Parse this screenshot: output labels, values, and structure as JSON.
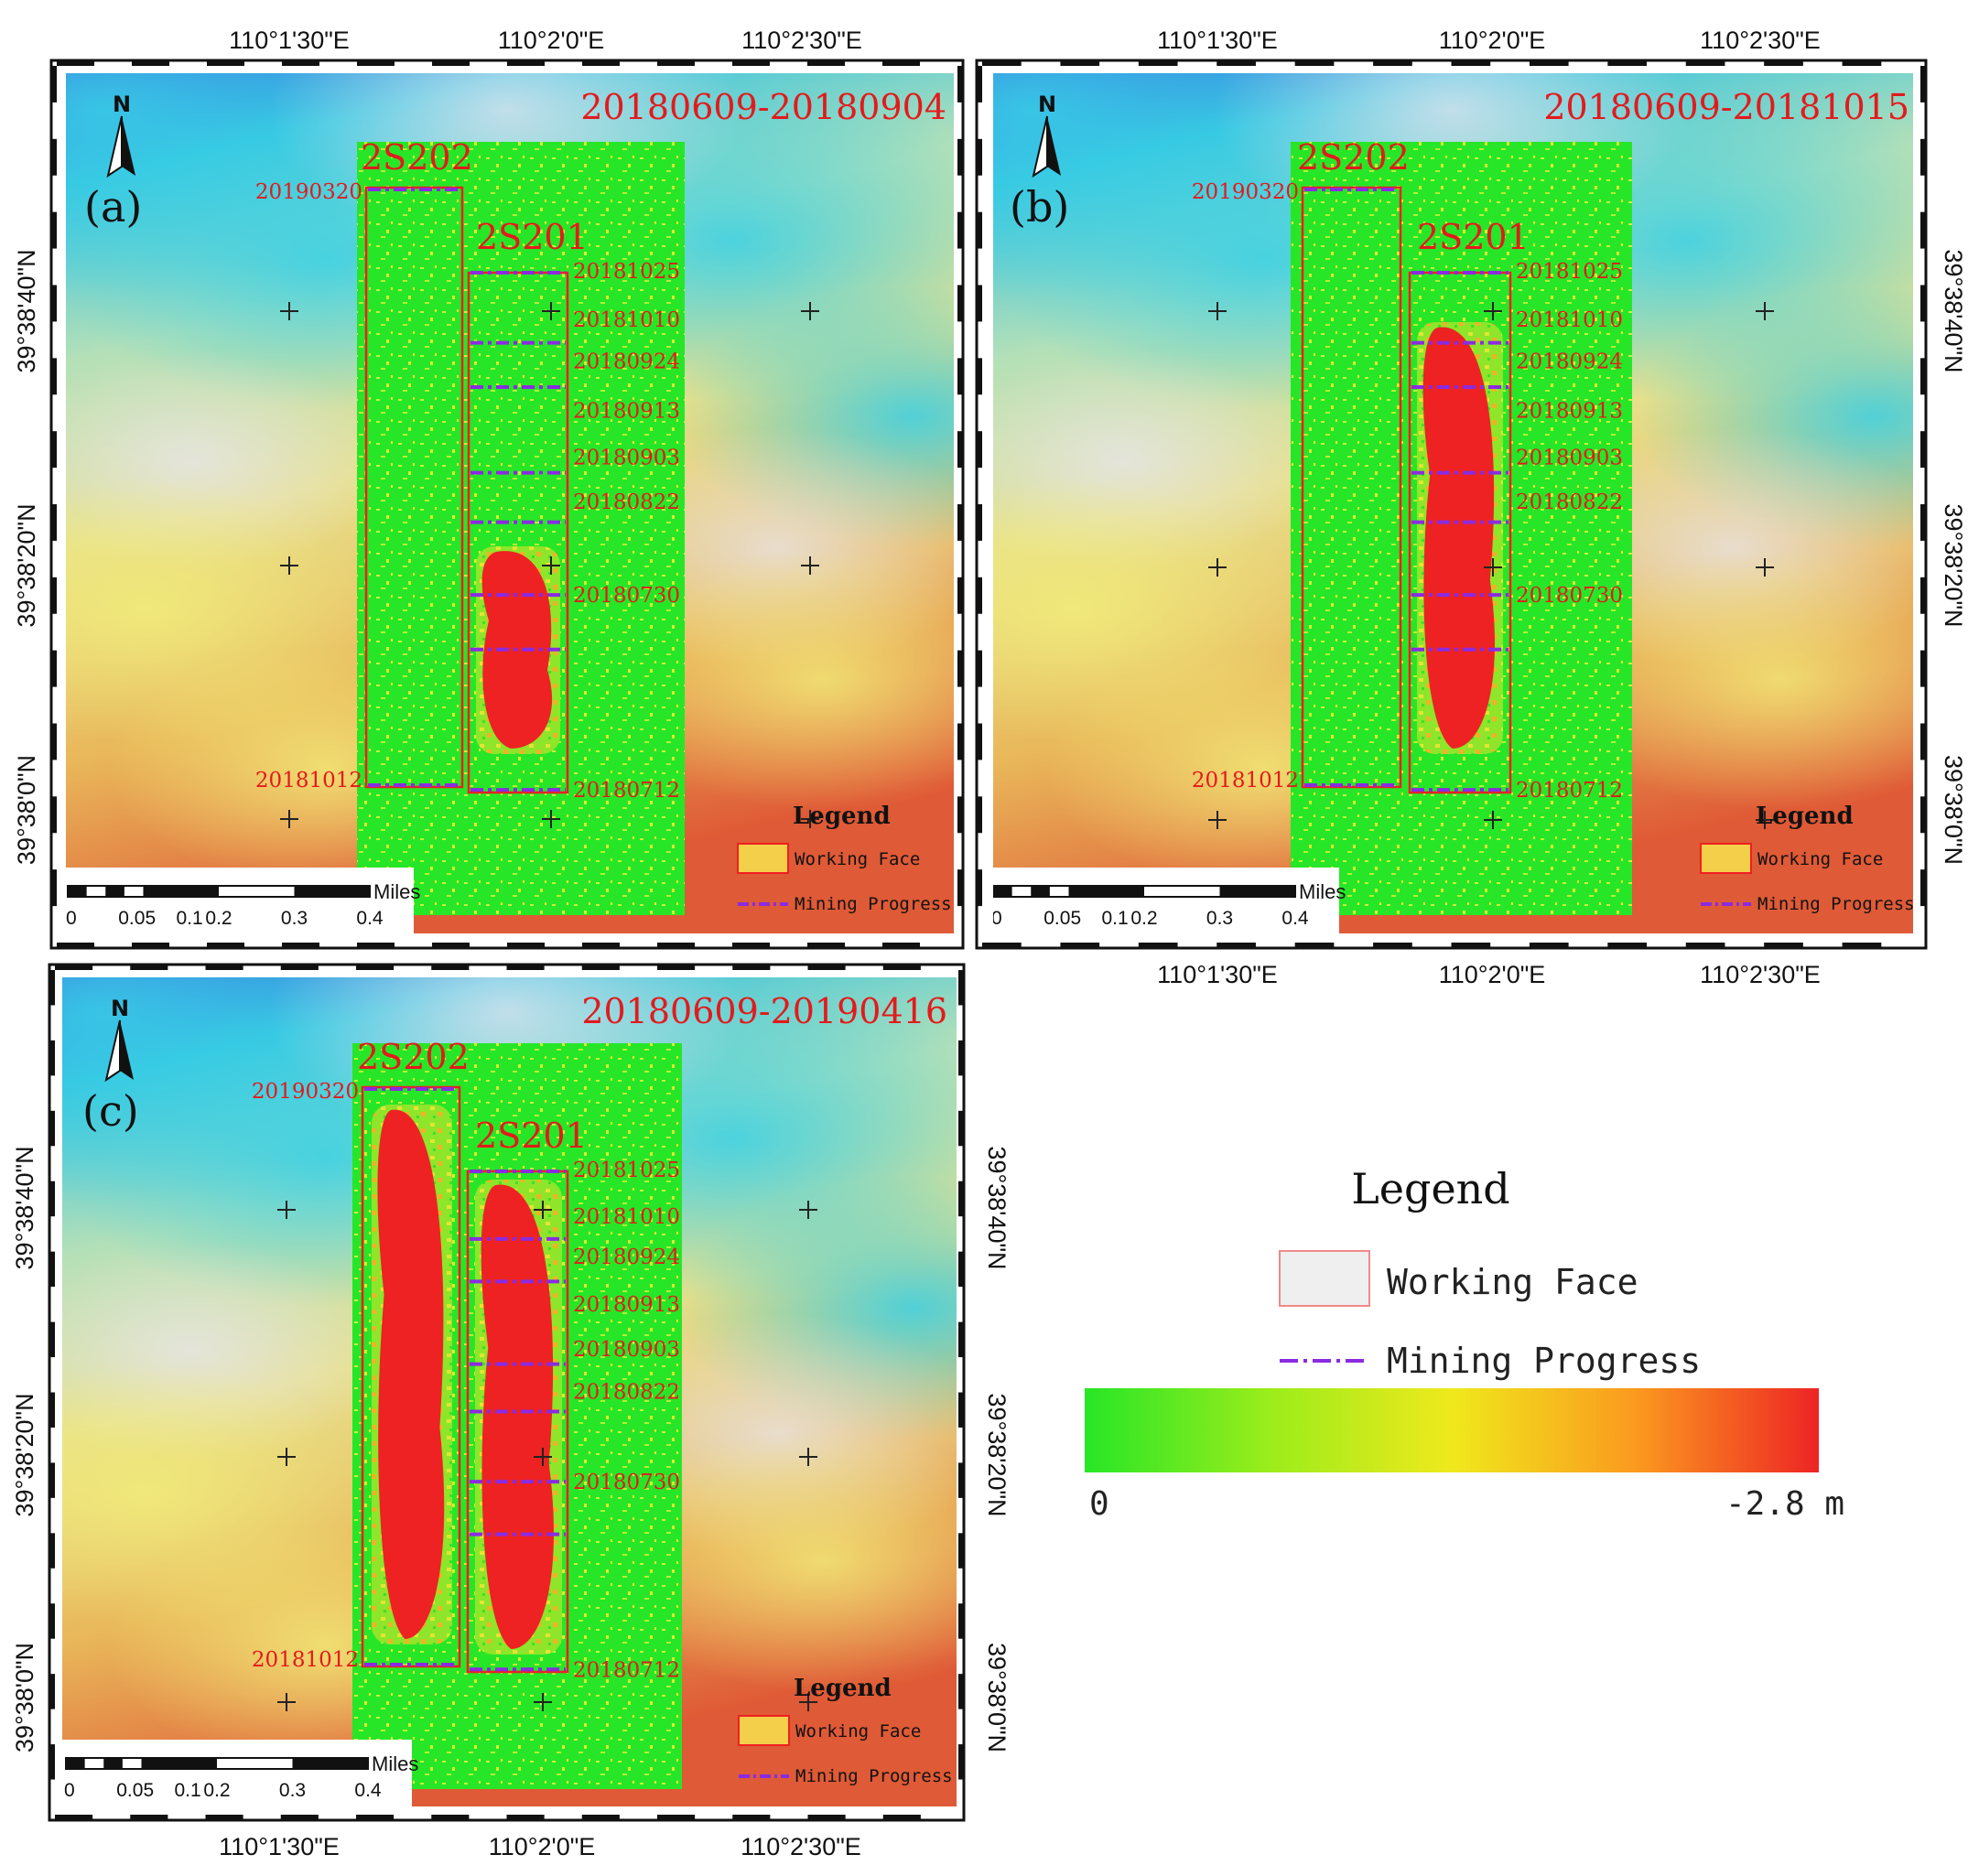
{
  "coords": {
    "lon": [
      "110°1'30\"E",
      "110°2'0\"E",
      "110°2'30\"E"
    ],
    "lat": [
      "39°38'40\"N",
      "39°38'20\"N",
      "39°38'0\"N"
    ]
  },
  "panels": [
    {
      "tag": "(a)",
      "period": "20180609-20180904"
    },
    {
      "tag": "(b)",
      "period": "20180609-20181015"
    },
    {
      "tag": "(c)",
      "period": "20180609-20190416"
    }
  ],
  "faces": {
    "left": "2S202",
    "right": "2S201"
  },
  "left_dates": {
    "top": "20190320",
    "bottom": "20181012"
  },
  "progress_dates": [
    "20181025",
    "20181010",
    "20180924",
    "20180913",
    "20180903",
    "20180822",
    "20180730",
    "20180712"
  ],
  "north": "N",
  "scale_bar": {
    "units": "Miles",
    "ticks": [
      "0",
      "0.05",
      "0.1",
      "0.2",
      "0.3",
      "0.4"
    ],
    "tick_values": [
      0,
      0.05,
      0.1,
      0.2,
      0.3,
      0.4
    ]
  },
  "mini_legend": {
    "title": "Legend",
    "working_face": "Working Face",
    "mining_progress": "Mining Progress"
  },
  "main_legend": {
    "title": "Legend",
    "working_face": "Working Face",
    "mining_progress": "Mining Progress",
    "scale_min": "0",
    "scale_max": "-2.8 m",
    "gradient_colors": [
      "#27e627",
      "#9bec1b",
      "#efe91c",
      "#fb9a1f",
      "#ed2424"
    ]
  },
  "colors": {
    "title_red": "#e31a1c",
    "progress_purple": "#8a2be2",
    "face_red": "#ee2020",
    "deformation_green": "#27e627"
  }
}
